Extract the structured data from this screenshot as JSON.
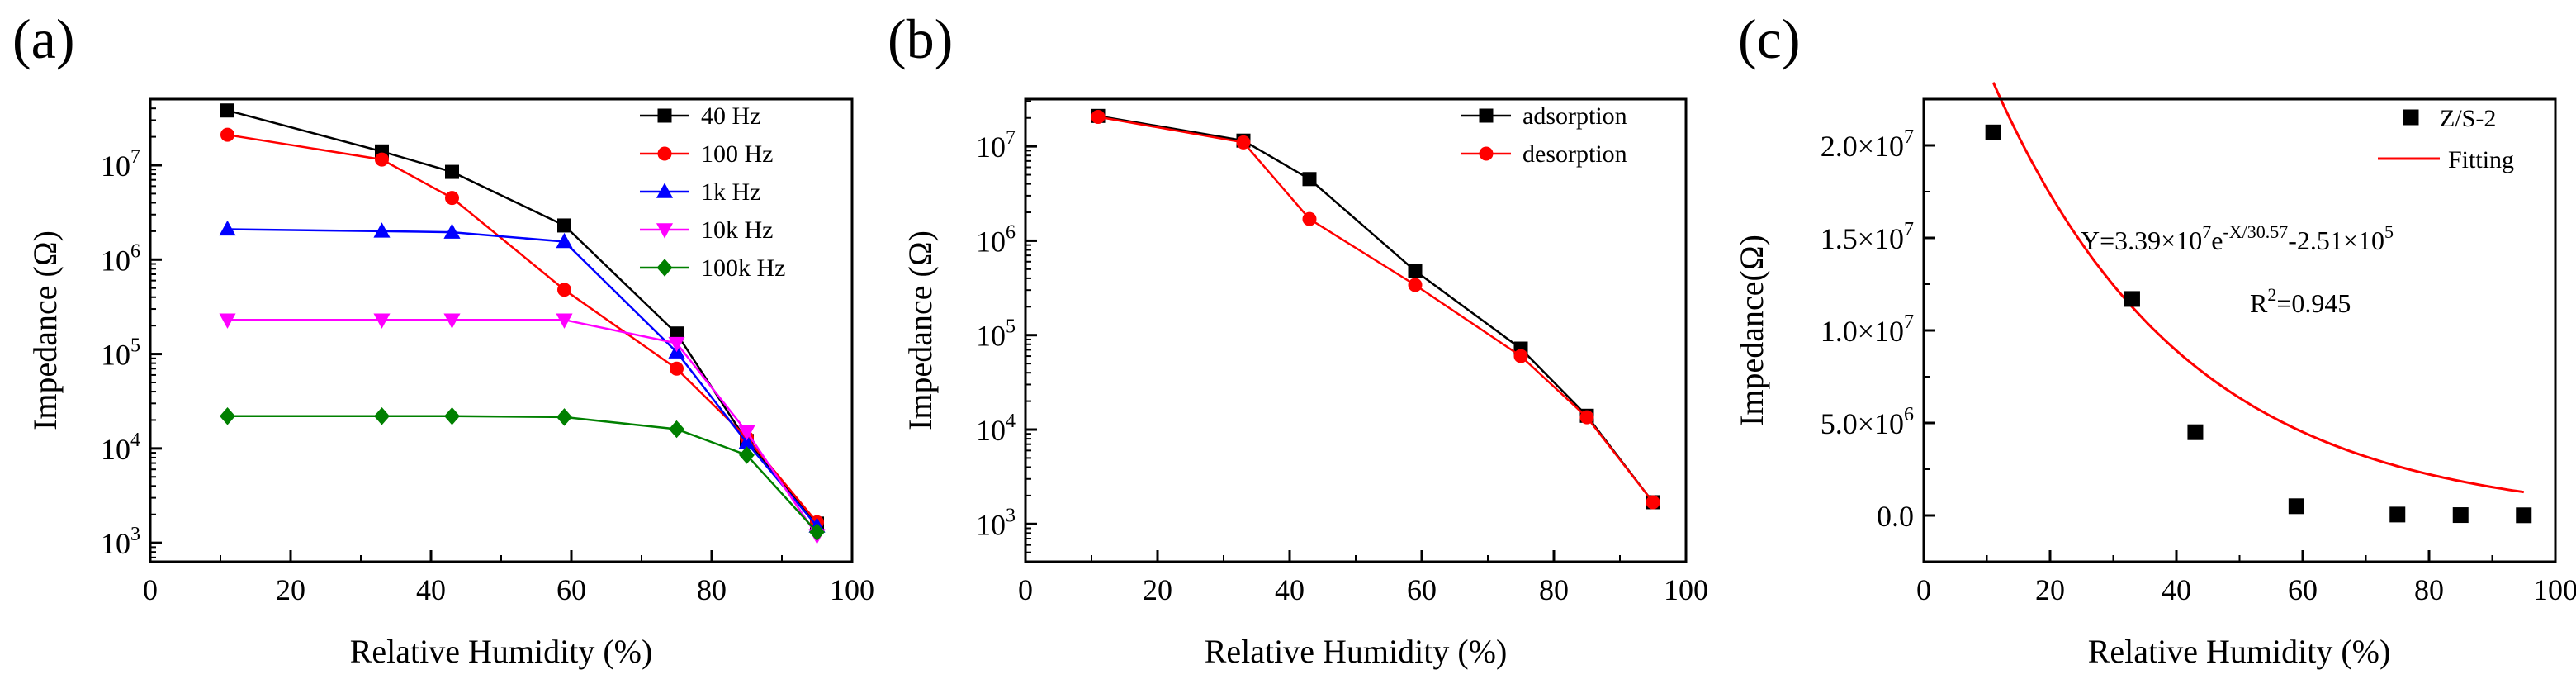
{
  "chart_data": [
    {
      "type": "line",
      "panel_label": "(a)",
      "title": "",
      "xlabel": "Relative Humidity (%)",
      "ylabel": "Impedance (Ω)",
      "x_ticks": [
        "0",
        "20",
        "40",
        "60",
        "80",
        "100"
      ],
      "y_ticks": [
        {
          "base": "10",
          "exp": "3"
        },
        {
          "base": "10",
          "exp": "4"
        },
        {
          "base": "10",
          "exp": "5"
        },
        {
          "base": "10",
          "exp": "6"
        },
        {
          "base": "10",
          "exp": "7"
        }
      ],
      "xlim": [
        0,
        100
      ],
      "ylim_log10": [
        2.8,
        7.7
      ],
      "yscale": "log",
      "legend_position": "top-right",
      "x": [
        11,
        33,
        43,
        59,
        75,
        85,
        95
      ],
      "series": [
        {
          "name": "40 Hz",
          "color": "#000000",
          "marker": "square",
          "values": [
            38000000,
            14000000,
            8500000,
            2300000,
            165000,
            12000,
            1600
          ]
        },
        {
          "name": "100 Hz",
          "color": "#ff0000",
          "marker": "circle",
          "values": [
            21000000,
            11500000,
            4500000,
            480000,
            70000,
            13000,
            1650
          ]
        },
        {
          "name": "1k Hz",
          "color": "#0000ff",
          "marker": "triangle-up",
          "values": [
            2100000,
            2000000,
            1950000,
            1550000,
            105000,
            11500,
            1500
          ]
        },
        {
          "name": "10k Hz",
          "color": "#ff00ff",
          "marker": "triangle-down",
          "values": [
            230000,
            230000,
            230000,
            230000,
            130000,
            15000,
            1200
          ]
        },
        {
          "name": "100k Hz",
          "color": "#008000",
          "marker": "diamond",
          "values": [
            22000,
            22000,
            22000,
            21500,
            16000,
            8500,
            1300
          ]
        }
      ]
    },
    {
      "type": "line",
      "panel_label": "(b)",
      "title": "",
      "xlabel": "Relative Humidity (%)",
      "ylabel": "Impedance (Ω)",
      "x_ticks": [
        "0",
        "20",
        "40",
        "60",
        "80",
        "100"
      ],
      "y_ticks": [
        {
          "base": "10",
          "exp": "3"
        },
        {
          "base": "10",
          "exp": "4"
        },
        {
          "base": "10",
          "exp": "5"
        },
        {
          "base": "10",
          "exp": "6"
        },
        {
          "base": "10",
          "exp": "7"
        }
      ],
      "xlim": [
        0,
        100
      ],
      "ylim_log10": [
        2.6,
        7.5
      ],
      "yscale": "log",
      "legend_position": "top-right",
      "x": [
        11,
        33,
        43,
        59,
        75,
        85,
        95
      ],
      "series": [
        {
          "name": "adsorption",
          "color": "#000000",
          "marker": "square",
          "values": [
            21000000,
            11500000,
            4500000,
            480000,
            72000,
            14000,
            1700
          ]
        },
        {
          "name": "desorption",
          "color": "#ff0000",
          "marker": "circle",
          "values": [
            20500000,
            11000000,
            1700000,
            340000,
            60000,
            13500,
            1700
          ]
        }
      ]
    },
    {
      "type": "scatter",
      "panel_label": "(c)",
      "title": "",
      "xlabel": "Relative Humidity (%)",
      "ylabel": "Impedance(Ω)",
      "x_ticks": [
        "0",
        "20",
        "40",
        "60",
        "80",
        "100"
      ],
      "y_ticks": [
        {
          "base": "0.0",
          "exp": ""
        },
        {
          "base": "5.0×10",
          "exp": "6"
        },
        {
          "base": "1.0×10",
          "exp": "7"
        },
        {
          "base": "1.5×10",
          "exp": "7"
        },
        {
          "base": "2.0×10",
          "exp": "7"
        }
      ],
      "y_tick_values": [
        0,
        5000000,
        10000000,
        15000000,
        20000000
      ],
      "xlim": [
        0,
        100
      ],
      "ylim": [
        -2500000,
        22500000
      ],
      "legend_position": "top-right",
      "series": [
        {
          "name": "Z/S-2",
          "color": "#000000",
          "marker": "square",
          "x": [
            11,
            33,
            43,
            59,
            75,
            85,
            95
          ],
          "values": [
            20700000,
            11700000,
            4500000,
            500000,
            50000,
            20000,
            10000
          ]
        }
      ],
      "fit": {
        "name": "Fitting",
        "color": "#ff0000",
        "A": 33900000,
        "t": 30.57,
        "y0": -251000,
        "x_range": [
          11,
          95
        ],
        "equation": {
          "p1": "Y=3.39×10",
          "s1": "7",
          "p2": "e",
          "s2": "-X/30.57",
          "p3": "-2.51×10",
          "s3": "5"
        },
        "r2": {
          "p1": "R",
          "s1": "2",
          "p2": "=0.945"
        }
      }
    }
  ]
}
